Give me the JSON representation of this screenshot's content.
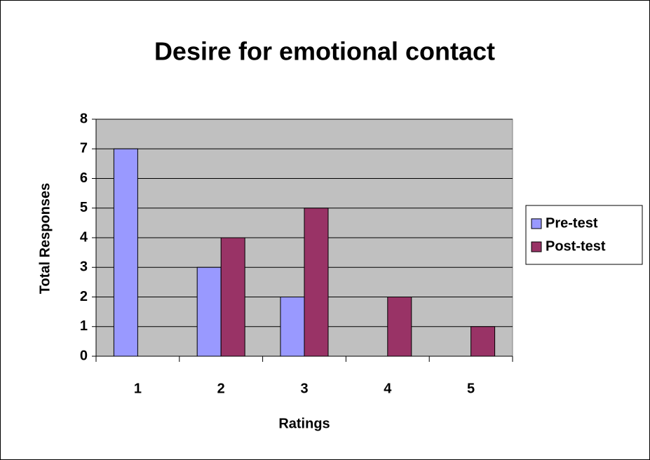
{
  "chart_data": {
    "type": "bar",
    "title": "Desire for emotional contact",
    "x_label": "Ratings",
    "y_label": "Total Responses",
    "categories": [
      "1",
      "2",
      "3",
      "4",
      "5"
    ],
    "series": [
      {
        "name": "Pre-test",
        "color": "#9999ff",
        "values": [
          7,
          3,
          2,
          0,
          0
        ]
      },
      {
        "name": "Post-test",
        "color": "#993366",
        "values": [
          0,
          4,
          5,
          2,
          1
        ]
      }
    ],
    "ylim": [
      0,
      8
    ],
    "yticks": [
      0,
      1,
      2,
      3,
      4,
      5,
      6,
      7,
      8
    ],
    "grid": true,
    "legend": "right"
  }
}
